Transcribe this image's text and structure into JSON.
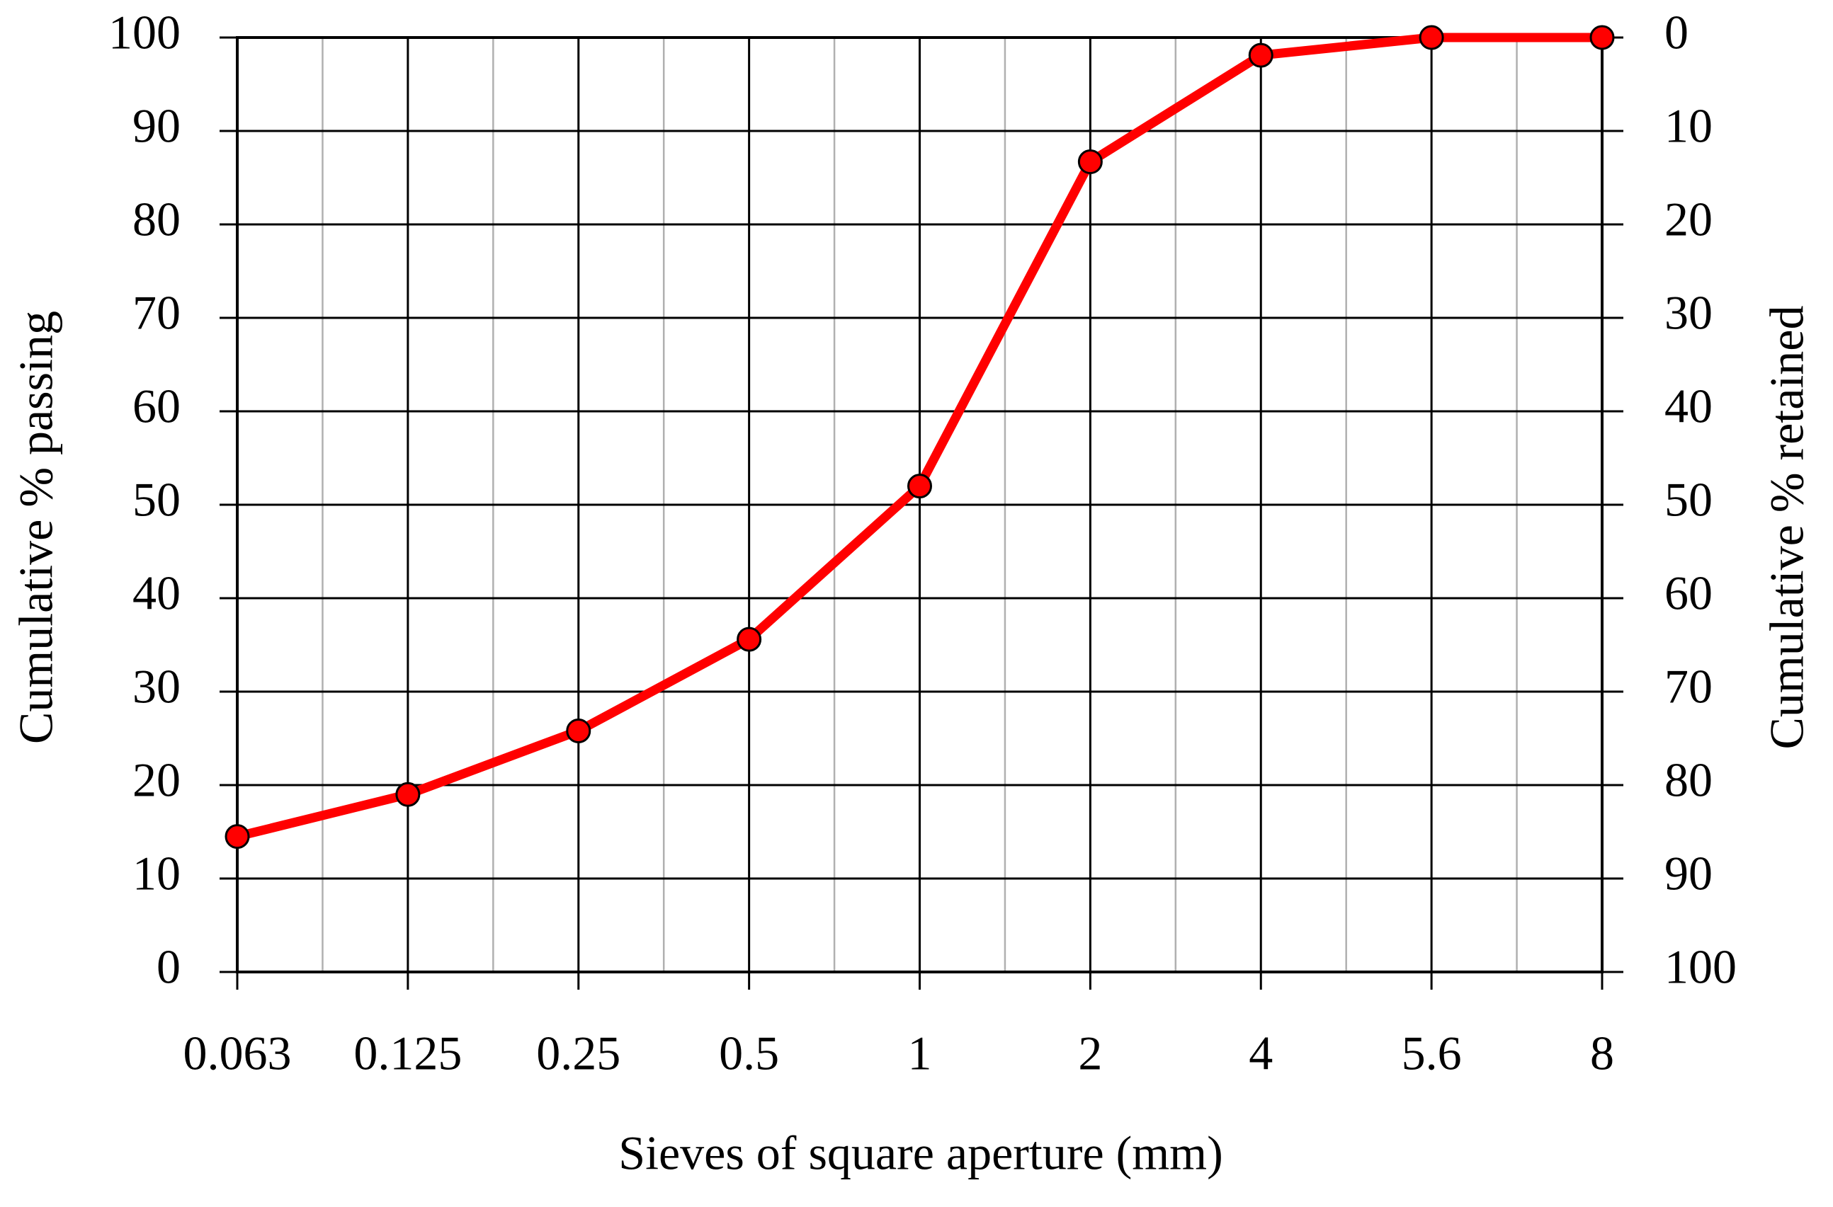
{
  "chart_data": {
    "type": "line",
    "xlabel": "Sieves of square aperture (mm)",
    "ylabel": "Cumulative % passing",
    "y2label": "Cumulative % retained",
    "categories": [
      "0.063",
      "0.125",
      "0.25",
      "0.5",
      "1",
      "2",
      "4",
      "5.6",
      "8"
    ],
    "values": [
      14.5,
      19,
      25.8,
      35.6,
      52,
      86.7,
      98.1,
      100,
      100
    ],
    "color": "#ff0000",
    "ylim": [
      0,
      100
    ],
    "yticks": [
      0,
      10,
      20,
      30,
      40,
      50,
      60,
      70,
      80,
      90,
      100
    ],
    "y2lim": [
      100,
      0
    ],
    "y2ticks": [
      0,
      10,
      20,
      30,
      40,
      50,
      60,
      70,
      80,
      90,
      100
    ],
    "grid": true
  }
}
